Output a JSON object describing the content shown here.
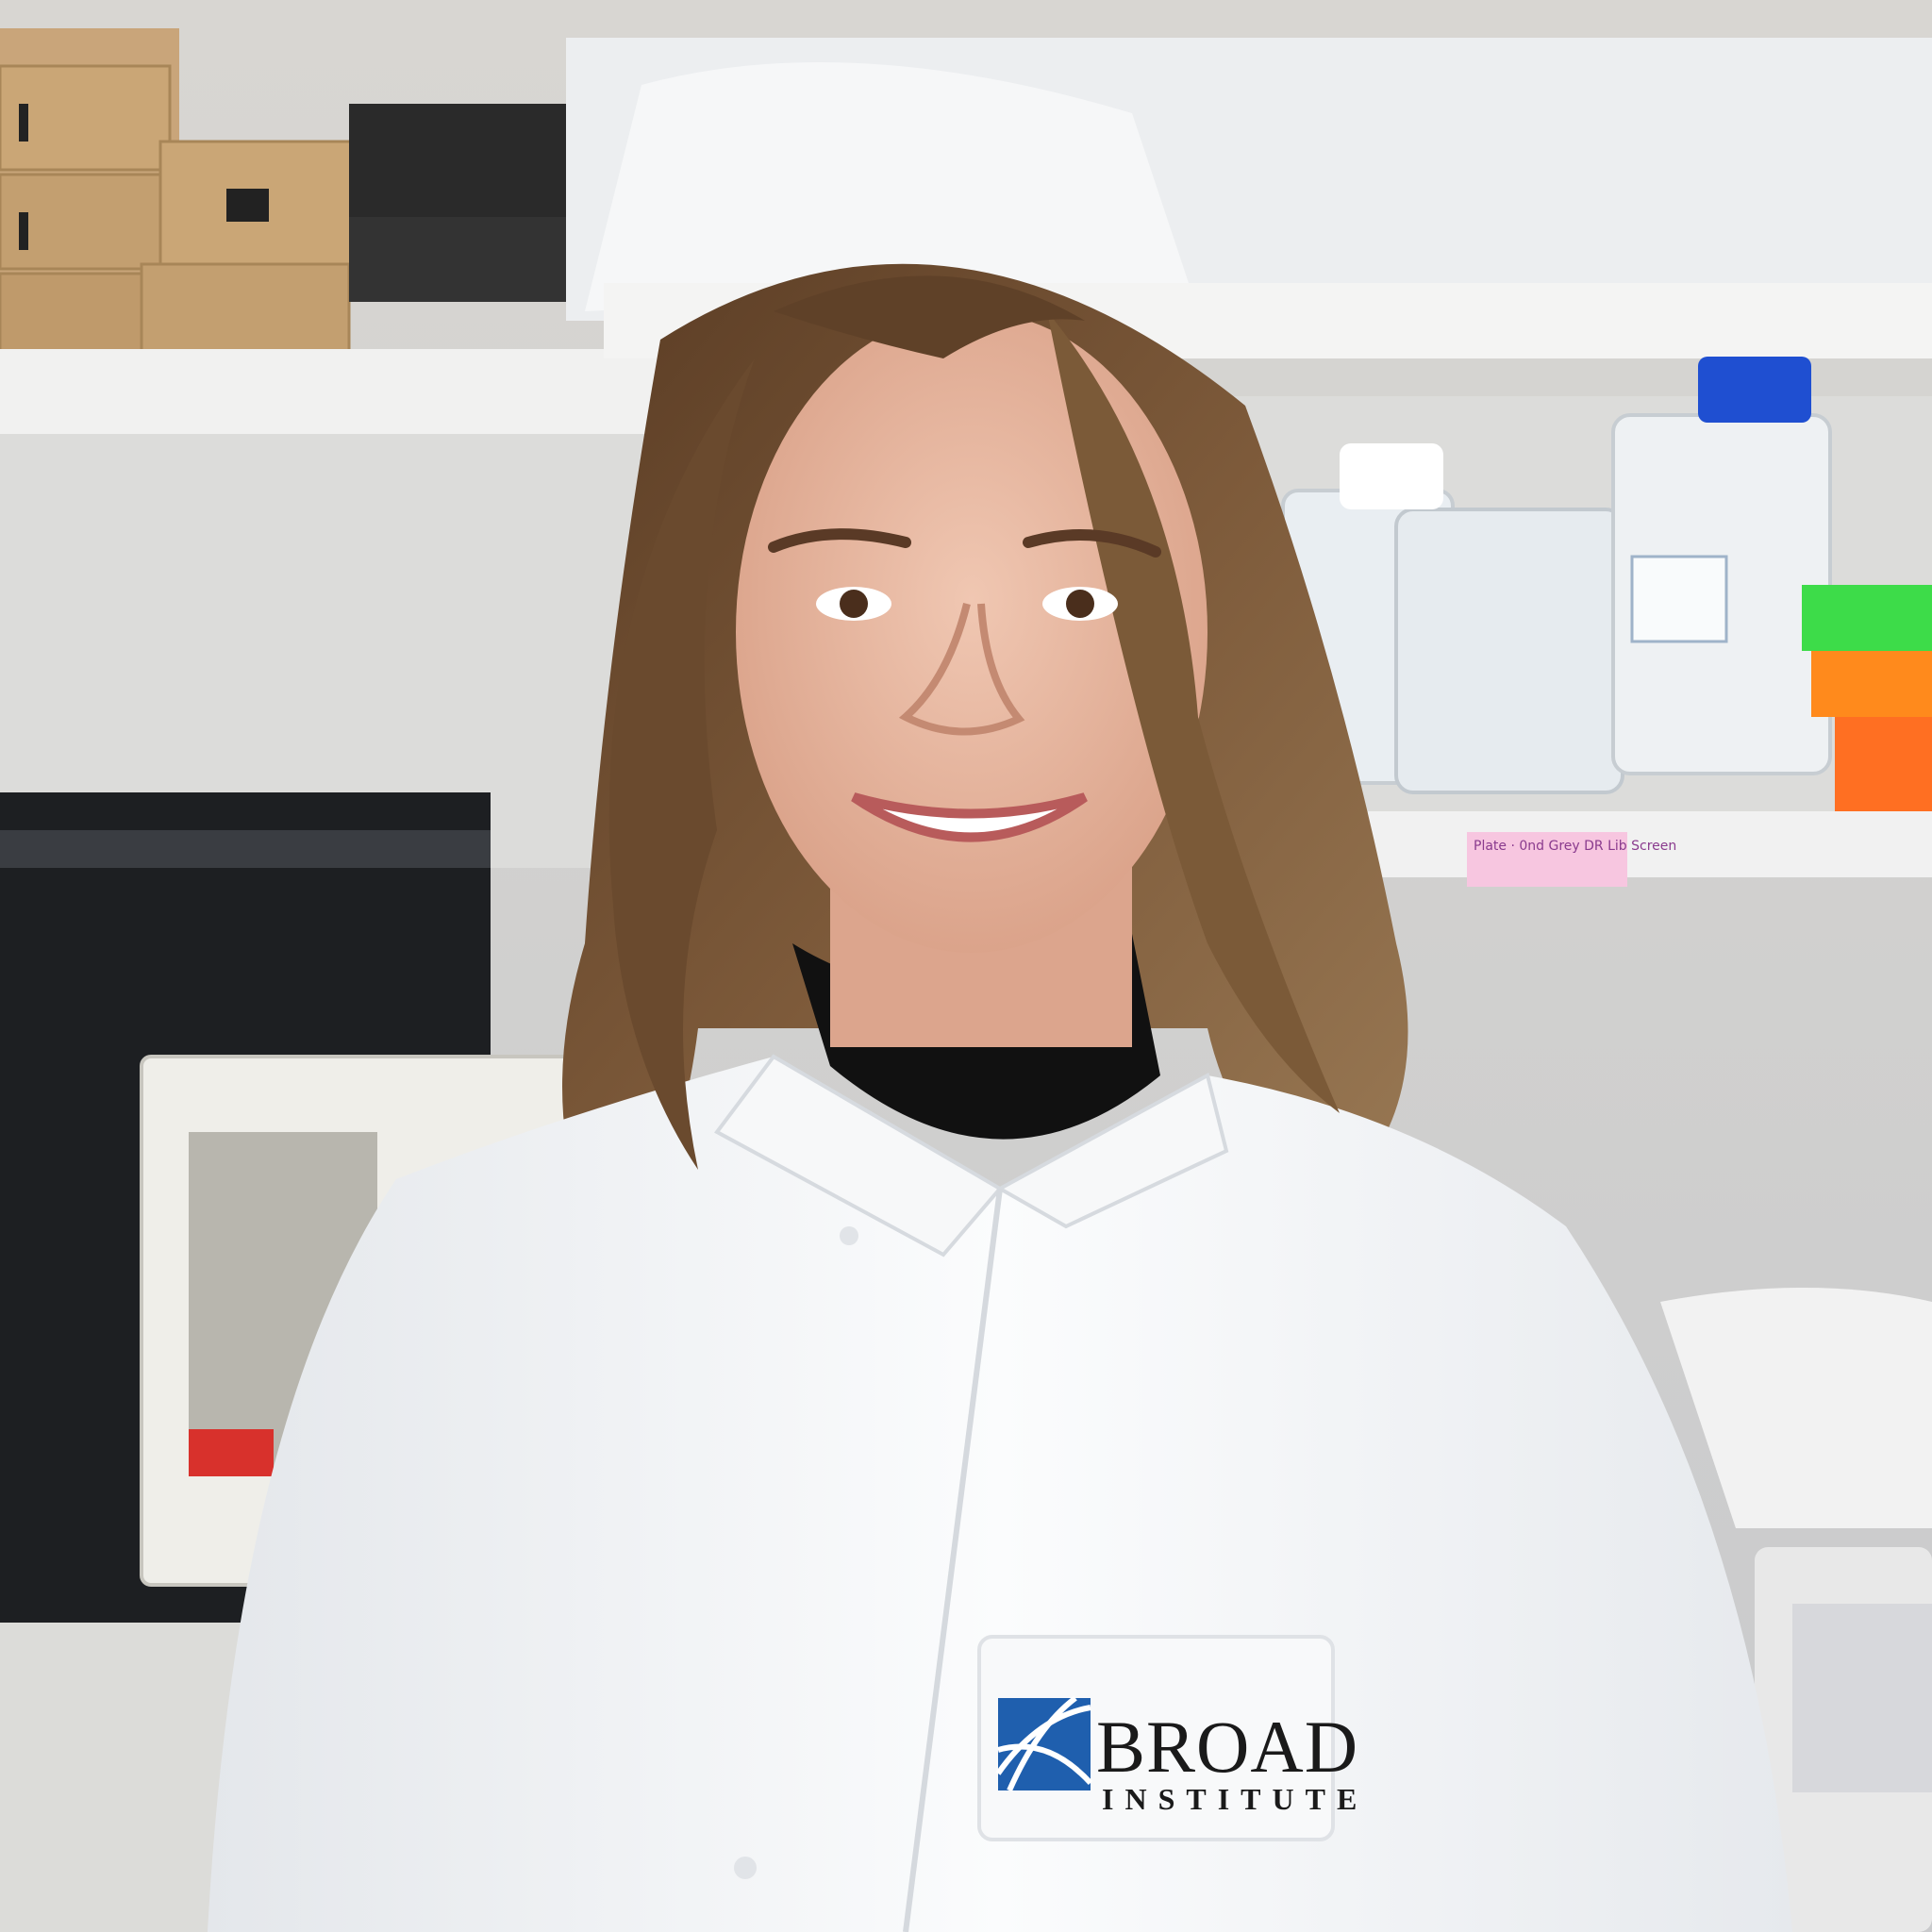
{
  "photo": {
    "subject": "smiling-person-in-lab-coat",
    "setting": "laboratory",
    "palette": {
      "background": "#e8e6e3",
      "coat": "#f5f6f7",
      "coat_shadow": "#d9dde2",
      "hair": "#6b4a2f",
      "turtleneck": "#111111",
      "skin": "#e8b9a3",
      "logo_blue": "#1f5fae",
      "cardboard": "#c9a57a",
      "rack_green": "#3ddc49",
      "rack_orange": "#ff8a1c",
      "cap_blue": "#1f4fd1"
    }
  },
  "logo": {
    "line1": "BROAD",
    "line2": "INSTITUTE"
  },
  "shelf_label": {
    "text": "Plate · 0nd Grey\nDR Lib Screen"
  }
}
